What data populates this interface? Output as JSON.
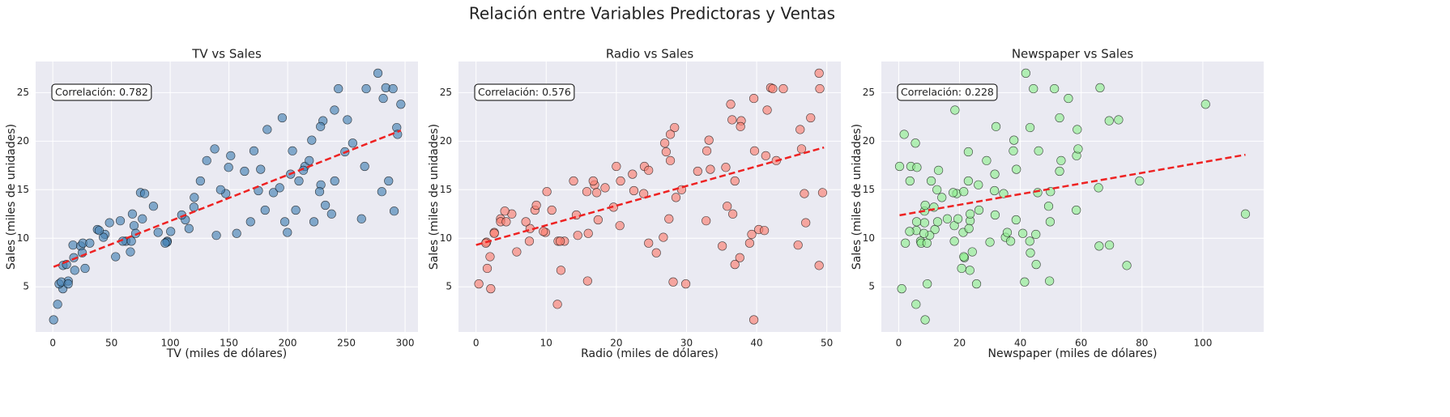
{
  "title": "Relación entre Variables Predictoras y Ventas",
  "chart_data": [
    {
      "type": "scatter",
      "title": "TV vs Sales",
      "xlabel": "TV (miles de dólares)",
      "ylabel": "Sales (miles de unidades)",
      "annotation": "Correlación: 0.782",
      "color": "#4682b4",
      "x": [
        230.1,
        44.5,
        17.2,
        151.5,
        180.8,
        8.7,
        57.5,
        120.2,
        8.6,
        199.8,
        66.1,
        214.7,
        23.8,
        97.5,
        204.1,
        195.4,
        67.8,
        281.4,
        69.2,
        147.3,
        218.4,
        237.4,
        13.2,
        228.3,
        62.3,
        262.9,
        142.9,
        240.1,
        248.8,
        70.6,
        292.9,
        112.9,
        97.2,
        265.6,
        95.7,
        290.7,
        266.9,
        74.7,
        43.1,
        228,
        202.5,
        177,
        293.6,
        206.9,
        25.1,
        175.1,
        89.7,
        239.9,
        227.2,
        66.9,
        0.7,
        5.4,
        7.3,
        17.9,
        18.7,
        25.6,
        27.5,
        31.5,
        38,
        39.5,
        48.3,
        59.6,
        76.3,
        78.2,
        85.7,
        100.4,
        109.8,
        116,
        125.7,
        131.1,
        137.9,
        139.3,
        149.7,
        156.6,
        163.3,
        168.4,
        182.6,
        187.9,
        193.2,
        197.6,
        209.6,
        213.4,
        220.5,
        222.4,
        232.1,
        243.2,
        250.9,
        255.4,
        276.9,
        280.2,
        283.6,
        286,
        289.7,
        296.4,
        4.1,
        11.7,
        13.1,
        53.5,
        120.5,
        171.3
      ],
      "values": [
        22.1,
        10.4,
        9.3,
        18.5,
        12.9,
        7.2,
        11.8,
        13.2,
        4.8,
        10.6,
        8.6,
        17.4,
        9.2,
        9.7,
        19,
        22.4,
        12.5,
        24.4,
        11.3,
        14.6,
        18,
        12.5,
        5.6,
        15.5,
        9.7,
        12,
        15,
        15.9,
        18.9,
        10.5,
        21.4,
        11.9,
        9.6,
        17.4,
        9.5,
        12.8,
        25.4,
        14.7,
        10.1,
        21.5,
        16.6,
        17.1,
        20.7,
        12.9,
        8.5,
        14.9,
        10.6,
        23.2,
        14.8,
        9.7,
        1.6,
        5.3,
        5.5,
        8,
        6.7,
        9.5,
        6.9,
        9.5,
        10.9,
        10.8,
        11.6,
        9.7,
        12,
        14.6,
        13.3,
        10.7,
        12.4,
        11,
        15.9,
        18,
        19.2,
        10.3,
        17.3,
        10.5,
        16.9,
        11.7,
        21.2,
        14.7,
        15.2,
        11.7,
        15.9,
        17,
        20.1,
        11.7,
        13.4,
        25.4,
        22.2,
        19.8,
        27,
        14.8,
        25.5,
        15.9,
        25.4,
        23.8,
        3.2,
        7.3,
        5.3,
        8.1,
        14.2,
        19
      ],
      "trend": {
        "color": "#ee2222",
        "x": [
          0.7,
          296.4
        ],
        "y": [
          7.06,
          21.1
        ]
      },
      "xlim": [
        -14.6,
        311
      ],
      "xticks": [
        0,
        50,
        100,
        150,
        200,
        250,
        300
      ],
      "ylim": [
        0.35,
        28.2
      ],
      "yticks": [
        5,
        10,
        15,
        20,
        25
      ],
      "grid": true
    },
    {
      "type": "scatter",
      "title": "Radio vs Sales",
      "xlabel": "Radio (miles de dólares)",
      "ylabel": "Sales (miles de unidades)",
      "annotation": "Correlación: 0.576",
      "color": "#fa8072",
      "x": [
        37.8,
        39.3,
        45.9,
        41.3,
        10.8,
        48.9,
        32.8,
        19.6,
        2.1,
        2.6,
        5.8,
        24,
        35.1,
        7.6,
        32.9,
        47.7,
        36.6,
        39.6,
        20.5,
        23.9,
        27.7,
        5.1,
        15.9,
        16.9,
        12.6,
        3.5,
        29.3,
        16.7,
        27.1,
        16,
        28.3,
        17.4,
        1.5,
        20,
        1.4,
        4.1,
        43.8,
        49.4,
        26.7,
        37.7,
        22.3,
        33.4,
        27.7,
        8.4,
        25.7,
        22.5,
        9.9,
        41.5,
        15.8,
        11.7,
        39.6,
        29.9,
        28.1,
        37.6,
        12.1,
        39,
        1.6,
        24.6,
        40.3,
        41.1,
        47,
        12,
        27.5,
        46.8,
        35.8,
        9.6,
        14.3,
        7.7,
        36.9,
        42.8,
        46.4,
        14.5,
        35.6,
        2.6,
        31.6,
        7.1,
        46.2,
        17.2,
        18.4,
        3.5,
        20.6,
        24.6,
        33.2,
        4.3,
        8.6,
        49,
        36.5,
        26.9,
        48.9,
        10.1,
        42,
        13.9,
        42.3,
        36.3,
        11.6,
        36.9,
        0.4,
        2,
        28.5,
        39.7
      ],
      "values": [
        22.1,
        10.4,
        9.3,
        18.5,
        12.9,
        7.2,
        11.8,
        13.2,
        4.8,
        10.6,
        8.6,
        17.4,
        9.2,
        9.7,
        19,
        22.4,
        12.5,
        24.4,
        11.3,
        14.6,
        18,
        12.5,
        5.6,
        15.5,
        9.7,
        12,
        15,
        15.9,
        18.9,
        10.5,
        21.4,
        11.9,
        9.6,
        17.4,
        9.5,
        12.8,
        25.4,
        14.7,
        10.1,
        21.5,
        16.6,
        17.1,
        20.7,
        12.9,
        8.5,
        14.9,
        10.6,
        23.2,
        14.8,
        9.7,
        1.6,
        5.3,
        5.5,
        8,
        6.7,
        9.5,
        6.9,
        9.5,
        10.9,
        10.8,
        11.6,
        9.7,
        12,
        14.6,
        13.3,
        10.7,
        12.4,
        11,
        15.9,
        18,
        19.2,
        10.3,
        17.3,
        10.5,
        16.9,
        11.7,
        21.2,
        14.7,
        15.2,
        11.7,
        15.9,
        17,
        20.1,
        11.7,
        13.4,
        25.4,
        22.2,
        19.8,
        27,
        14.8,
        25.5,
        15.9,
        25.4,
        23.8,
        3.2,
        7.3,
        5.3,
        8.1,
        14.2,
        19
      ],
      "trend": {
        "color": "#ee2222",
        "x": [
          0,
          49.6
        ],
        "y": [
          9.31,
          19.35
        ]
      },
      "xlim": [
        -2.5,
        52
      ],
      "xticks": [
        0,
        10,
        20,
        30,
        40,
        50
      ],
      "ylim": [
        0.35,
        28.2
      ],
      "yticks": [
        5,
        10,
        15,
        20,
        25
      ],
      "grid": true
    },
    {
      "type": "scatter",
      "title": "Newspaper vs Sales",
      "xlabel": "Newspaper (miles de dólares)",
      "ylabel": "Sales (miles de unidades)",
      "annotation": "Correlación: 0.228",
      "color": "#90ee90",
      "x": [
        69.2,
        45.1,
        69.3,
        58.5,
        58.4,
        75,
        23.5,
        11.6,
        1,
        21.2,
        24.2,
        4,
        65.9,
        7.2,
        46,
        52.9,
        114,
        55.8,
        18.3,
        19.1,
        53.4,
        23.5,
        49.6,
        26.2,
        18.3,
        19.5,
        12.6,
        22.9,
        22.9,
        40.8,
        43.2,
        38.6,
        30,
        0.3,
        7.4,
        8.5,
        5,
        45.7,
        35.1,
        32,
        31.6,
        38.7,
        1.8,
        26.4,
        43.3,
        31.5,
        35.7,
        18.5,
        49.9,
        36.8,
        8.7,
        9.4,
        41.4,
        21.6,
        23.4,
        9.3,
        20.7,
        2.2,
        11.9,
        5.8,
        8.5,
        43.1,
        16,
        34.5,
        49.3,
        3.6,
        31.7,
        23.1,
        79.2,
        28.9,
        59,
        10.2,
        6,
        8.3,
        52.9,
        12.8,
        58.7,
        17.9,
        65.7,
        5.9,
        10.7,
        13.1,
        37.9,
        49.8,
        8.7,
        44.3,
        72.3,
        5.5,
        41.8,
        21.4,
        66.2,
        3.7,
        51.2,
        100.9,
        5.7,
        45.2,
        25.6,
        21.4,
        14.2,
        37.7
      ],
      "values": [
        22.1,
        10.4,
        9.3,
        18.5,
        12.9,
        7.2,
        11.8,
        13.2,
        4.8,
        10.6,
        8.6,
        17.4,
        9.2,
        9.7,
        19,
        22.4,
        12.5,
        24.4,
        11.3,
        14.6,
        18,
        12.5,
        5.6,
        15.5,
        9.7,
        12,
        15,
        15.9,
        18.9,
        10.5,
        21.4,
        11.9,
        9.6,
        17.4,
        9.5,
        12.8,
        25.4,
        14.7,
        10.1,
        21.5,
        16.6,
        17.1,
        20.7,
        12.9,
        8.5,
        14.9,
        10.6,
        23.2,
        14.8,
        9.7,
        1.6,
        5.3,
        5.5,
        8,
        6.7,
        9.5,
        6.9,
        9.5,
        10.9,
        10.8,
        11.6,
        9.7,
        12,
        14.6,
        13.3,
        10.7,
        12.4,
        11,
        15.9,
        18,
        19.2,
        10.3,
        17.3,
        10.5,
        16.9,
        11.7,
        21.2,
        14.7,
        15.2,
        11.7,
        15.9,
        17,
        20.1,
        11.7,
        13.4,
        25.4,
        22.2,
        19.8,
        27,
        14.8,
        25.5,
        15.9,
        25.4,
        23.8,
        3.2,
        7.3,
        5.3,
        8.1,
        14.2,
        19
      ],
      "trend": {
        "color": "#ee2222",
        "x": [
          0.3,
          114
        ],
        "y": [
          12.37,
          18.6
        ]
      },
      "xlim": [
        -5.7,
        120
      ],
      "xticks": [
        0,
        20,
        40,
        60,
        80,
        100
      ],
      "ylim": [
        0.35,
        28.2
      ],
      "yticks": [
        5,
        10,
        15,
        20,
        25
      ],
      "grid": true
    }
  ]
}
